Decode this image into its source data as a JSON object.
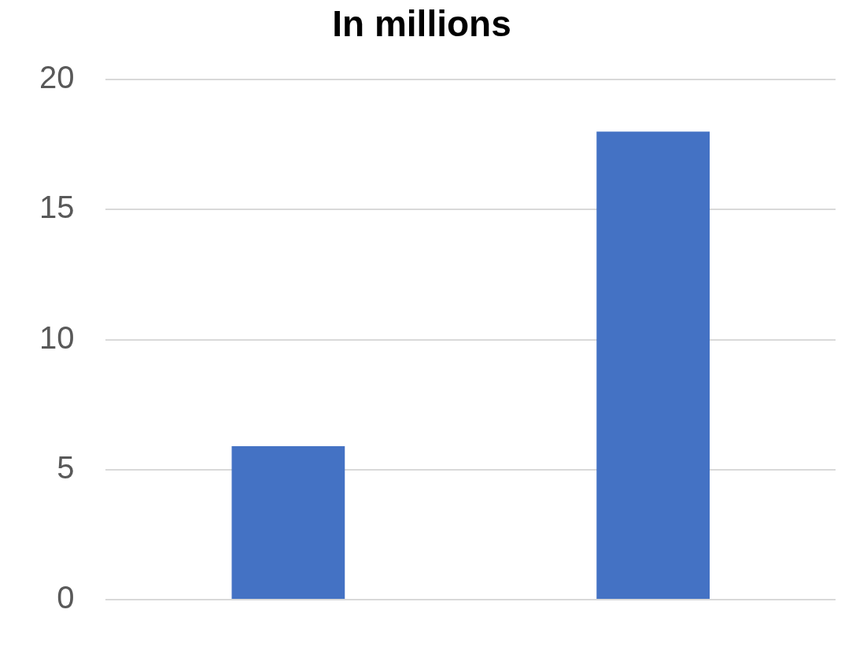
{
  "chart_data": {
    "type": "bar",
    "title": "In millions",
    "categories": [
      null,
      null
    ],
    "values": [
      5.9,
      18
    ],
    "color": "#4472c4",
    "ylim": [
      0,
      20
    ],
    "yticks": [
      0,
      5,
      10,
      15,
      20
    ],
    "grid": "y",
    "legend": false
  }
}
